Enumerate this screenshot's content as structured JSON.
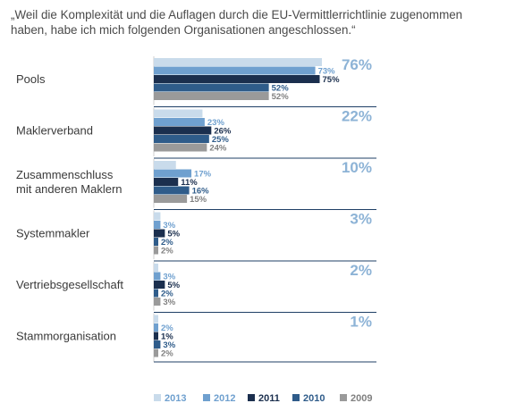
{
  "title": "„Weil die Komplexität und die Auflagen durch die EU-Vermittlerrichtlinie zugenommen haben, habe ich mich folgenden Organisationen angeschlossen.“",
  "colors": {
    "2013": "#c9dbeb",
    "2012": "#6fa0cf",
    "2011": "#1b2f4e",
    "2010": "#2f5c8a",
    "2009": "#9a9a9a",
    "separator": "#1f3f66",
    "highlight": "#8db3d6"
  },
  "chart_data": {
    "type": "bar",
    "orientation": "horizontal",
    "categories": [
      [
        "Pools"
      ],
      [
        "Maklerverband"
      ],
      [
        "Zusammenschluss",
        "mit anderen Maklern"
      ],
      [
        "Systemmakler"
      ],
      [
        "Vertriebsgesellschaft"
      ],
      [
        "Stammorganisation"
      ]
    ],
    "highlight_labels": [
      "76%",
      "22%",
      "10%",
      "3%",
      "2%",
      "1%"
    ],
    "series": [
      {
        "name": "2013",
        "values": [
          76,
          22,
          10,
          3,
          2,
          1
        ],
        "labels": [
          "",
          "",
          "",
          "",
          "",
          ""
        ]
      },
      {
        "name": "2012",
        "values": [
          73,
          23,
          17,
          3,
          3,
          2
        ],
        "labels": [
          "73%",
          "23%",
          "17%",
          "3%",
          "3%",
          "2%"
        ]
      },
      {
        "name": "2011",
        "values": [
          75,
          26,
          11,
          5,
          5,
          1
        ],
        "labels": [
          "75%",
          "26%",
          "11%",
          "5%",
          "5%",
          "1%"
        ]
      },
      {
        "name": "2010",
        "values": [
          52,
          25,
          16,
          2,
          2,
          3
        ],
        "labels": [
          "52%",
          "25%",
          "16%",
          "2%",
          "2%",
          "3%"
        ]
      },
      {
        "name": "2009",
        "values": [
          52,
          24,
          15,
          2,
          3,
          2
        ],
        "labels": [
          "52%",
          "24%",
          "15%",
          "2%",
          "3%",
          "2%"
        ]
      }
    ],
    "xlim": [
      0,
      76
    ],
    "legend": [
      "2013",
      "2012",
      "2011",
      "2010",
      "2009"
    ],
    "legend_position": "bottom",
    "grid": false
  }
}
